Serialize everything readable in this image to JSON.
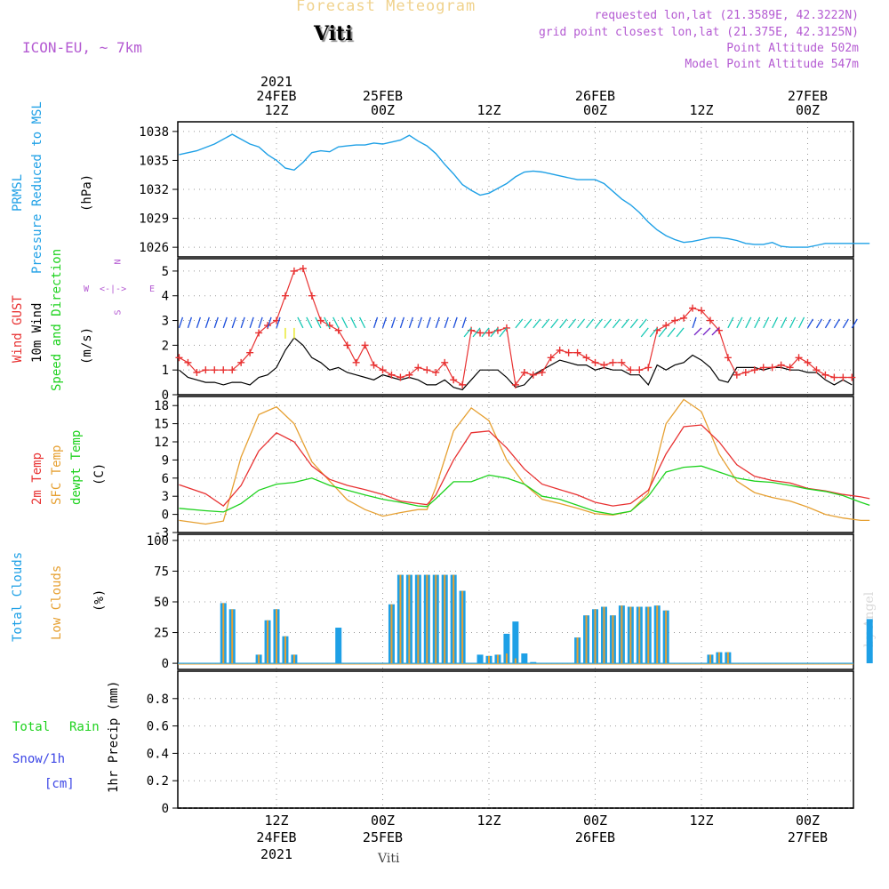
{
  "header": {
    "title": "Forecast Meteogram",
    "location": "Viti",
    "model": "ICON-EU, ~ 7km",
    "requested": "requested lon,lat (21.3589E, 42.3222N)",
    "grid_point": "grid point closest lon,lat (21.375E, 42.3125N)",
    "point_altitude": "Point Altitude 502m",
    "model_altitude": "Model Point Altitude 547m",
    "footer_location": "Viti",
    "watermark": "by Angel"
  },
  "time_axis": {
    "top": [
      {
        "lines": [
          "2021",
          "24FEB",
          "12Z"
        ]
      },
      {
        "lines": [
          "25FEB",
          "00Z"
        ]
      },
      {
        "lines": [
          "12Z"
        ]
      },
      {
        "lines": [
          "26FEB",
          "00Z"
        ]
      },
      {
        "lines": [
          "12Z"
        ]
      },
      {
        "lines": [
          "27FEB",
          "00Z"
        ]
      }
    ],
    "bottom": [
      {
        "lines": [
          "12Z",
          "24FEB",
          "2021"
        ]
      },
      {
        "lines": [
          "00Z",
          "25FEB"
        ]
      },
      {
        "lines": [
          "12Z"
        ]
      },
      {
        "lines": [
          "00Z",
          "26FEB"
        ]
      },
      {
        "lines": [
          "12Z"
        ]
      },
      {
        "lines": [
          "00Z",
          "27FEB"
        ]
      }
    ]
  },
  "panels": {
    "pressure": {
      "labels": [
        "PRMSL",
        "Pressure Reduced to MSL",
        "(hPa)"
      ],
      "ticks": [
        "1038",
        "1035",
        "1032",
        "1029",
        "1026"
      ]
    },
    "wind": {
      "labels": [
        "Wind GUST",
        "10m Wind",
        "Speed and Direction",
        "(m/s)"
      ],
      "ticks": [
        "5",
        "4",
        "3",
        "2",
        "1",
        "0"
      ],
      "compass": {
        "n": "N",
        "s": "S",
        "w": "W",
        "e": "E",
        "center": "<-|->"
      }
    },
    "temp": {
      "labels": [
        "2m Temp",
        "SFC Temp",
        "dewpt Temp",
        "(C)"
      ],
      "ticks": [
        "18",
        "15",
        "12",
        "9",
        "6",
        "3",
        "0",
        "-3"
      ]
    },
    "clouds": {
      "labels": [
        "Total Clouds",
        "Low Clouds",
        "(%)"
      ],
      "ticks": [
        "100",
        "75",
        "50",
        "25",
        "0"
      ]
    },
    "precip": {
      "labels": [
        "Total",
        "Rain",
        "Snow/1h",
        "[cm]",
        "1hr Precip (mm)"
      ],
      "ticks": [
        "0.8",
        "0.6",
        "0.4",
        "0.2",
        "0"
      ]
    }
  },
  "colors": {
    "pressure": "#1ea0e6",
    "gust": "#e83232",
    "wind": "#000000",
    "arrow_ne": "#1e50dc",
    "arrow_nw": "#14c8b4",
    "arrow_sw": "#14c8b4",
    "arrow_yel": "#e6e614",
    "temp2m": "#e83232",
    "sfc": "#e6a032",
    "dewpt": "#1ed21e",
    "total_clouds": "#1ea0e6",
    "low_clouds": "#e6a032",
    "title": "#f0d28c",
    "info": "#b45ad2"
  },
  "chart_data": [
    {
      "type": "line",
      "name": "pressure",
      "hours_from_24feb00z": [
        1,
        3,
        5,
        7,
        9,
        10,
        11,
        12,
        13,
        14,
        15,
        16,
        17,
        18,
        19,
        20,
        21,
        22,
        23,
        24,
        25,
        26,
        27,
        28,
        29,
        30,
        31,
        32,
        33,
        34,
        35,
        36,
        37,
        38,
        39,
        40,
        41,
        42,
        43,
        44,
        45,
        46,
        47,
        48,
        49,
        50,
        51,
        52,
        53,
        54,
        55,
        56,
        57,
        58,
        59,
        60,
        61,
        62,
        63,
        64,
        65,
        66,
        67,
        68,
        69,
        70,
        71,
        72,
        73,
        74,
        75,
        76,
        77,
        78,
        79
      ],
      "values": [
        1035.6,
        1036.0,
        1036.7,
        1037.7,
        1036.7,
        1036.4,
        1035.6,
        1035.0,
        1034.2,
        1034.0,
        1034.8,
        1035.8,
        1036.0,
        1035.9,
        1036.4,
        1036.5,
        1036.6,
        1036.6,
        1036.8,
        1036.7,
        1036.9,
        1037.1,
        1037.6,
        1037.0,
        1036.5,
        1035.7,
        1034.6,
        1033.6,
        1032.5,
        1031.9,
        1031.4,
        1031.6,
        1032.1,
        1032.6,
        1033.3,
        1033.8,
        1033.9,
        1033.8,
        1033.6,
        1033.4,
        1033.2,
        1033.0,
        1033.0,
        1033.0,
        1032.6,
        1031.8,
        1031.0,
        1030.4,
        1029.6,
        1028.6,
        1027.8,
        1027.2,
        1026.8,
        1026.5,
        1026.6,
        1026.8,
        1027.0,
        1027.0,
        1026.9,
        1026.7,
        1026.4,
        1026.3,
        1026.3,
        1026.5,
        1026.1,
        1026.0,
        1026.0,
        1026.0,
        1026.2,
        1026.4,
        1026.4,
        1026.4,
        1026.4,
        1026.4,
        1026.4
      ],
      "ylim": [
        1025,
        1039
      ]
    },
    {
      "type": "line",
      "name": "wind",
      "hours_from_24feb00z": [
        1,
        2,
        3,
        4,
        5,
        6,
        7,
        8,
        9,
        10,
        11,
        12,
        13,
        14,
        15,
        16,
        17,
        18,
        19,
        20,
        21,
        22,
        23,
        24,
        25,
        26,
        27,
        28,
        29,
        30,
        31,
        32,
        33,
        34,
        35,
        36,
        37,
        38,
        39,
        40,
        41,
        42,
        43,
        44,
        45,
        46,
        47,
        48,
        49,
        50,
        51,
        52,
        53,
        54,
        55,
        56,
        57,
        58,
        59,
        60,
        61,
        62,
        63,
        64,
        65,
        66,
        67,
        68,
        69,
        70,
        71,
        72,
        73,
        74,
        75,
        76,
        77
      ],
      "gust": [
        1.5,
        1.3,
        0.9,
        1.0,
        1.0,
        1.0,
        1.0,
        1.3,
        1.7,
        2.5,
        2.8,
        3.0,
        4.0,
        5.0,
        5.1,
        4.0,
        3.0,
        2.8,
        2.6,
        2.0,
        1.3,
        2.0,
        1.2,
        1.0,
        0.8,
        0.7,
        0.8,
        1.1,
        1.0,
        0.9,
        1.3,
        0.6,
        0.4,
        2.6,
        2.5,
        2.5,
        2.6,
        2.7,
        0.4,
        0.9,
        0.8,
        0.9,
        1.5,
        1.8,
        1.7,
        1.7,
        1.5,
        1.3,
        1.2,
        1.3,
        1.3,
        1.0,
        1.0,
        1.1,
        2.6,
        2.8,
        3.0,
        3.1,
        3.5,
        3.4,
        3.0,
        2.6,
        1.5,
        0.8,
        0.9,
        1.0,
        1.1,
        1.1,
        1.2,
        1.1,
        1.5,
        1.3,
        1.0,
        0.8,
        0.7,
        0.7,
        0.7
      ],
      "speed": [
        1.0,
        0.7,
        0.6,
        0.5,
        0.5,
        0.4,
        0.5,
        0.5,
        0.4,
        0.7,
        0.8,
        1.1,
        1.8,
        2.3,
        2.0,
        1.5,
        1.3,
        1.0,
        1.1,
        0.9,
        0.8,
        0.7,
        0.6,
        0.8,
        0.7,
        0.6,
        0.7,
        0.6,
        0.4,
        0.4,
        0.6,
        0.3,
        0.2,
        0.6,
        1.0,
        1.0,
        1.0,
        0.7,
        0.3,
        0.4,
        0.8,
        1.0,
        1.2,
        1.4,
        1.3,
        1.2,
        1.2,
        1.0,
        1.1,
        1.0,
        1.0,
        0.8,
        0.8,
        0.4,
        1.2,
        1.0,
        1.2,
        1.3,
        1.6,
        1.4,
        1.1,
        0.6,
        0.5,
        1.1,
        1.1,
        1.1,
        1.0,
        1.1,
        1.1,
        1.0,
        1.0,
        0.9,
        0.9,
        0.6,
        0.4,
        0.6,
        0.4
      ],
      "ylim": [
        0,
        5.5
      ]
    },
    {
      "type": "line",
      "name": "temperature",
      "hours_from_24feb00z": [
        1,
        4,
        6,
        8,
        10,
        12,
        14,
        16,
        18,
        20,
        22,
        24,
        26,
        28,
        29,
        30,
        32,
        34,
        36,
        38,
        40,
        42,
        44,
        46,
        48,
        50,
        52,
        54,
        56,
        58,
        60,
        62,
        64,
        66,
        68,
        70,
        72,
        74,
        76,
        78,
        79
      ],
      "temp2m": [
        4.9,
        3.4,
        1.4,
        4.8,
        10.5,
        13.5,
        12.0,
        8.0,
        5.8,
        4.8,
        4.1,
        3.3,
        2.2,
        1.8,
        1.6,
        3.2,
        9.0,
        13.5,
        13.8,
        11.0,
        7.5,
        5.0,
        4.1,
        3.2,
        2.0,
        1.4,
        1.8,
        4.0,
        10.0,
        14.5,
        14.8,
        12.0,
        8.2,
        6.3,
        5.6,
        5.2,
        4.3,
        3.9,
        3.3,
        2.9,
        2.6
      ],
      "sfc": [
        -1.0,
        -1.6,
        -1.1,
        9.5,
        16.5,
        17.8,
        15.0,
        8.7,
        5.5,
        2.4,
        0.8,
        -0.3,
        0.3,
        0.8,
        0.8,
        4.5,
        13.8,
        17.6,
        15.5,
        9.0,
        5.0,
        2.5,
        1.8,
        1.0,
        0.1,
        -0.1,
        0.5,
        3.5,
        15.0,
        19.0,
        17.0,
        10.0,
        5.5,
        3.6,
        2.8,
        2.2,
        1.2,
        0.0,
        -0.6,
        -1.0,
        -1.0
      ],
      "dewpt": [
        1.0,
        0.6,
        0.4,
        1.8,
        4.0,
        5.0,
        5.3,
        6.0,
        4.8,
        4.0,
        3.2,
        2.5,
        2.0,
        1.4,
        1.3,
        2.6,
        5.4,
        5.4,
        6.5,
        6.0,
        5.0,
        3.0,
        2.5,
        1.5,
        0.5,
        0.0,
        0.5,
        3.0,
        7.0,
        7.8,
        8.0,
        7.0,
        6.0,
        5.5,
        5.3,
        4.8,
        4.2,
        3.8,
        3.1,
        2.0,
        1.5
      ],
      "ylim": [
        -3,
        19.5
      ]
    },
    {
      "type": "bar",
      "name": "clouds",
      "hours_from_24feb00z": [
        6,
        7,
        10,
        11,
        12,
        13,
        14,
        19,
        25,
        26,
        27,
        28,
        29,
        30,
        31,
        32,
        33,
        35,
        36,
        37,
        38,
        39,
        40,
        41,
        46,
        47,
        48,
        49,
        50,
        51,
        52,
        53,
        54,
        55,
        56,
        61,
        62,
        63,
        79
      ],
      "total": [
        49,
        44,
        7,
        35,
        44,
        22,
        7,
        29,
        48,
        72,
        72,
        72,
        72,
        72,
        72,
        72,
        59,
        7,
        6,
        7,
        24,
        34,
        8,
        1,
        21,
        39,
        44,
        46,
        39,
        47,
        46,
        46,
        46,
        47,
        43,
        7,
        9,
        9,
        36
      ],
      "low": [
        49,
        44,
        7,
        35,
        44,
        22,
        7,
        0,
        48,
        72,
        72,
        72,
        72,
        72,
        72,
        72,
        59,
        0,
        6,
        7,
        8,
        4,
        0,
        0,
        21,
        39,
        44,
        46,
        39,
        47,
        46,
        46,
        46,
        47,
        43,
        7,
        9,
        9,
        0
      ],
      "ylim": [
        -5,
        105
      ]
    },
    {
      "type": "bar",
      "name": "precipitation",
      "hours_from_24feb00z": [],
      "total": [],
      "ylim": [
        0,
        1
      ]
    }
  ]
}
